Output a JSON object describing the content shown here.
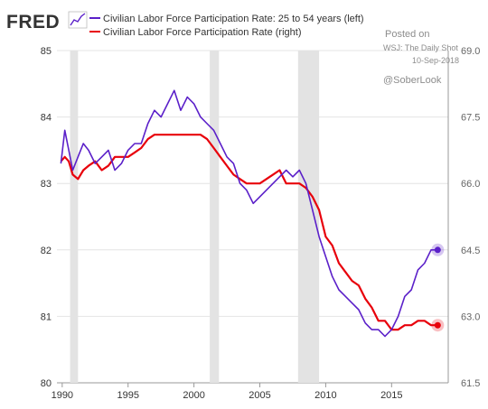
{
  "brand": {
    "name": "FRED",
    "icon": "sparkline-icon",
    "color": "#333333"
  },
  "legend": {
    "left_label": "Civilian Labor Force Participation Rate: 25 to 54 years (left)",
    "right_label": "Civilian Labor Force Participation Rate (right)"
  },
  "annotation": {
    "line1": "Posted on",
    "line2": "WSJ: The Daily Shot",
    "line3": "10-Sep-2018",
    "line4": "@SoberLook"
  },
  "colors": {
    "left_series": "#5b20c9",
    "right_series": "#e8000b",
    "recession": "#e3e3e3",
    "grid": "#e4e4e4"
  },
  "chart_data": {
    "type": "line",
    "title": "",
    "x_ticks": [
      "1990",
      "1995",
      "2000",
      "2005",
      "2010",
      "2015"
    ],
    "xlim": [
      1989.6,
      2019.3
    ],
    "left_axis": {
      "ylim": [
        80,
        85
      ],
      "ticks": [
        "80",
        "81",
        "82",
        "83",
        "84",
        "85"
      ]
    },
    "right_axis": {
      "ylim": [
        61.5,
        69.0
      ],
      "ticks": [
        "61.5",
        "63.0",
        "64.5",
        "66.0",
        "67.5",
        "69.0"
      ]
    },
    "grid": true,
    "legend_position": "top",
    "recession_shading": [
      [
        1990.6,
        1991.2
      ],
      [
        2001.2,
        2001.9
      ],
      [
        2007.9,
        2009.5
      ]
    ],
    "series": [
      {
        "name": "Civilian Labor Force Participation Rate: 25 to 54 years (left)",
        "axis": "left",
        "x": [
          1989.9,
          1990.2,
          1990.5,
          1990.8,
          1991.2,
          1991.6,
          1992.0,
          1992.5,
          1993.0,
          1993.5,
          1994.0,
          1994.5,
          1995.0,
          1995.5,
          1996.0,
          1996.5,
          1997.0,
          1997.5,
          1998.0,
          1998.5,
          1999.0,
          1999.5,
          2000.0,
          2000.5,
          2001.0,
          2001.5,
          2002.0,
          2002.5,
          2003.0,
          2003.5,
          2004.0,
          2004.5,
          2005.0,
          2005.5,
          2006.0,
          2006.5,
          2007.0,
          2007.5,
          2008.0,
          2008.5,
          2009.0,
          2009.5,
          2010.0,
          2010.5,
          2011.0,
          2011.5,
          2012.0,
          2012.5,
          2013.0,
          2013.5,
          2014.0,
          2014.5,
          2015.0,
          2015.5,
          2016.0,
          2016.5,
          2017.0,
          2017.5,
          2018.0,
          2018.5
        ],
        "values": [
          83.3,
          83.8,
          83.5,
          83.2,
          83.4,
          83.6,
          83.5,
          83.3,
          83.4,
          83.5,
          83.2,
          83.3,
          83.5,
          83.6,
          83.6,
          83.9,
          84.1,
          84.0,
          84.2,
          84.4,
          84.1,
          84.3,
          84.2,
          84.0,
          83.9,
          83.8,
          83.6,
          83.4,
          83.3,
          83.0,
          82.9,
          82.7,
          82.8,
          82.9,
          83.0,
          83.1,
          83.2,
          83.1,
          83.2,
          83.0,
          82.6,
          82.2,
          81.9,
          81.6,
          81.4,
          81.3,
          81.2,
          81.1,
          80.9,
          80.8,
          80.8,
          80.7,
          80.8,
          81.0,
          81.3,
          81.4,
          81.7,
          81.8,
          82.0,
          82.0
        ]
      },
      {
        "name": "Civilian Labor Force Participation Rate (right)",
        "axis": "right",
        "x": [
          1989.9,
          1990.2,
          1990.5,
          1990.8,
          1991.2,
          1991.6,
          1992.0,
          1992.5,
          1993.0,
          1993.5,
          1994.0,
          1994.5,
          1995.0,
          1995.5,
          1996.0,
          1996.5,
          1997.0,
          1997.5,
          1998.0,
          1998.5,
          1999.0,
          1999.5,
          2000.0,
          2000.5,
          2001.0,
          2001.5,
          2002.0,
          2002.5,
          2003.0,
          2003.5,
          2004.0,
          2004.5,
          2005.0,
          2005.5,
          2006.0,
          2006.5,
          2007.0,
          2007.5,
          2008.0,
          2008.5,
          2009.0,
          2009.5,
          2010.0,
          2010.5,
          2011.0,
          2011.5,
          2012.0,
          2012.5,
          2013.0,
          2013.5,
          2014.0,
          2014.5,
          2015.0,
          2015.5,
          2016.0,
          2016.5,
          2017.0,
          2017.5,
          2018.0,
          2018.5
        ],
        "values": [
          66.5,
          66.6,
          66.5,
          66.2,
          66.1,
          66.3,
          66.4,
          66.5,
          66.3,
          66.4,
          66.6,
          66.6,
          66.6,
          66.7,
          66.8,
          67.0,
          67.1,
          67.1,
          67.1,
          67.1,
          67.1,
          67.1,
          67.1,
          67.1,
          67.0,
          66.8,
          66.6,
          66.4,
          66.2,
          66.1,
          66.0,
          66.0,
          66.0,
          66.1,
          66.2,
          66.3,
          66.0,
          66.0,
          66.0,
          65.9,
          65.7,
          65.4,
          64.8,
          64.6,
          64.2,
          64.0,
          63.8,
          63.7,
          63.4,
          63.2,
          62.9,
          62.9,
          62.7,
          62.7,
          62.8,
          62.8,
          62.9,
          62.9,
          62.8,
          62.8
        ]
      }
    ]
  }
}
